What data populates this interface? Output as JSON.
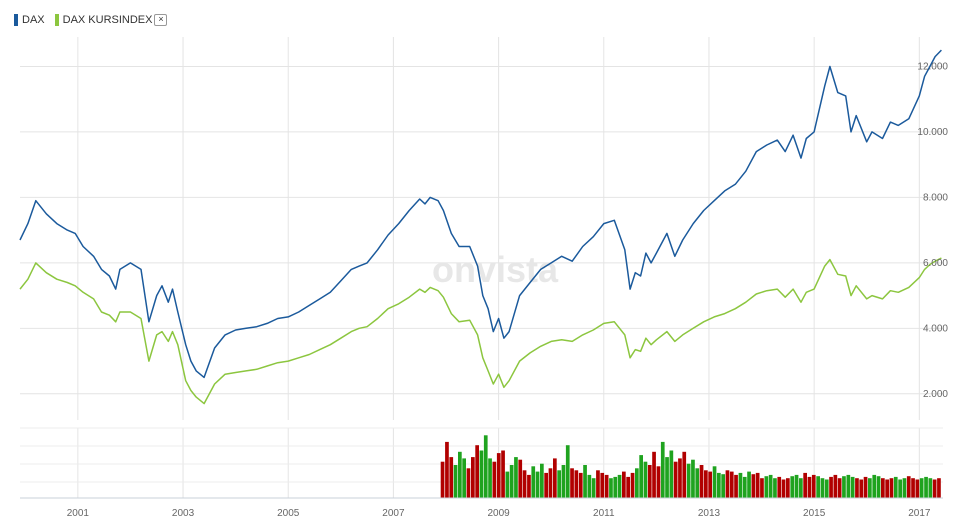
{
  "legend": {
    "items": [
      {
        "label": "DAX",
        "color": "#1b5a9c"
      },
      {
        "label": "DAX KURSINDEX",
        "color": "#8cc63f",
        "close_icon": "close-icon",
        "close_glyph": "×"
      }
    ]
  },
  "watermark": "onvista",
  "chart_data": {
    "type": "line",
    "title": "",
    "xlabel": "",
    "ylabel": "",
    "x_ticks": [
      "2001",
      "2003",
      "2005",
      "2007",
      "2009",
      "2011",
      "2013",
      "2015",
      "2017"
    ],
    "y_ticks": [
      "2.000",
      "4.000",
      "6.000",
      "8.000",
      "10.000",
      "12.000"
    ],
    "xlim": [
      1999.9,
      2017.45
    ],
    "ylim": [
      1200,
      12900
    ],
    "grid": true,
    "series": [
      {
        "name": "DAX",
        "color": "#1b5a9c",
        "x": [
          1999.9,
          2000.05,
          2000.2,
          2000.4,
          2000.6,
          2000.8,
          2000.95,
          2001.1,
          2001.3,
          2001.45,
          2001.6,
          2001.72,
          2001.8,
          2002.0,
          2002.2,
          2002.35,
          2002.5,
          2002.6,
          2002.72,
          2002.8,
          2002.9,
          2003.05,
          2003.15,
          2003.25,
          2003.4,
          2003.6,
          2003.8,
          2004.0,
          2004.2,
          2004.4,
          2004.6,
          2004.8,
          2005.0,
          2005.2,
          2005.4,
          2005.6,
          2005.8,
          2006.0,
          2006.2,
          2006.35,
          2006.5,
          2006.7,
          2006.9,
          2007.1,
          2007.3,
          2007.5,
          2007.6,
          2007.7,
          2007.85,
          2007.95,
          2008.1,
          2008.25,
          2008.45,
          2008.6,
          2008.7,
          2008.8,
          2008.9,
          2009.0,
          2009.1,
          2009.2,
          2009.4,
          2009.6,
          2009.8,
          2010.0,
          2010.2,
          2010.4,
          2010.6,
          2010.8,
          2011.0,
          2011.2,
          2011.4,
          2011.5,
          2011.6,
          2011.7,
          2011.8,
          2011.9,
          2012.0,
          2012.2,
          2012.35,
          2012.5,
          2012.7,
          2012.9,
          2013.1,
          2013.3,
          2013.5,
          2013.7,
          2013.9,
          2014.1,
          2014.3,
          2014.45,
          2014.6,
          2014.75,
          2014.85,
          2015.0,
          2015.2,
          2015.3,
          2015.45,
          2015.6,
          2015.7,
          2015.8,
          2016.0,
          2016.1,
          2016.3,
          2016.45,
          2016.6,
          2016.8,
          2017.0,
          2017.1,
          2017.2,
          2017.3,
          2017.42
        ],
        "values": [
          6700,
          7200,
          7900,
          7500,
          7200,
          7000,
          6900,
          6500,
          6200,
          5800,
          5600,
          5200,
          5800,
          6000,
          5800,
          4200,
          5000,
          5300,
          4800,
          5200,
          4500,
          3500,
          3000,
          2700,
          2500,
          3400,
          3800,
          3950,
          4000,
          4050,
          4150,
          4300,
          4350,
          4500,
          4700,
          4900,
          5100,
          5450,
          5800,
          5900,
          6000,
          6400,
          6850,
          7200,
          7600,
          7950,
          7800,
          8000,
          7900,
          7600,
          6900,
          6500,
          6500,
          5900,
          5000,
          4600,
          3900,
          4300,
          3700,
          3900,
          5000,
          5400,
          5800,
          6000,
          6200,
          6050,
          6500,
          6800,
          7200,
          7300,
          6400,
          5200,
          5700,
          5600,
          6300,
          6000,
          6300,
          6900,
          6200,
          6700,
          7200,
          7600,
          7900,
          8200,
          8400,
          8800,
          9400,
          9600,
          9750,
          9400,
          9900,
          9200,
          9800,
          10000,
          11400,
          12000,
          11200,
          11100,
          10000,
          10500,
          9700,
          10000,
          9800,
          10300,
          10200,
          10400,
          11100,
          11700,
          12000,
          12300,
          12500
        ]
      },
      {
        "name": "DAX KURSINDEX",
        "color": "#8cc63f",
        "x": [
          1999.9,
          2000.05,
          2000.2,
          2000.4,
          2000.6,
          2000.8,
          2000.95,
          2001.1,
          2001.3,
          2001.45,
          2001.6,
          2001.72,
          2001.8,
          2002.0,
          2002.2,
          2002.35,
          2002.5,
          2002.6,
          2002.72,
          2002.8,
          2002.9,
          2003.05,
          2003.15,
          2003.25,
          2003.4,
          2003.6,
          2003.8,
          2004.0,
          2004.2,
          2004.4,
          2004.6,
          2004.8,
          2005.0,
          2005.2,
          2005.4,
          2005.6,
          2005.8,
          2006.0,
          2006.2,
          2006.35,
          2006.5,
          2006.7,
          2006.9,
          2007.1,
          2007.3,
          2007.5,
          2007.6,
          2007.7,
          2007.85,
          2007.95,
          2008.1,
          2008.25,
          2008.45,
          2008.6,
          2008.7,
          2008.8,
          2008.9,
          2009.0,
          2009.1,
          2009.2,
          2009.4,
          2009.6,
          2009.8,
          2010.0,
          2010.2,
          2010.4,
          2010.6,
          2010.8,
          2011.0,
          2011.2,
          2011.4,
          2011.5,
          2011.6,
          2011.7,
          2011.8,
          2011.9,
          2012.0,
          2012.2,
          2012.35,
          2012.5,
          2012.7,
          2012.9,
          2013.1,
          2013.3,
          2013.5,
          2013.7,
          2013.9,
          2014.1,
          2014.3,
          2014.45,
          2014.6,
          2014.75,
          2014.85,
          2015.0,
          2015.2,
          2015.3,
          2015.45,
          2015.6,
          2015.7,
          2015.8,
          2016.0,
          2016.1,
          2016.3,
          2016.45,
          2016.6,
          2016.8,
          2017.0,
          2017.1,
          2017.2,
          2017.3,
          2017.42
        ],
        "values": [
          5200,
          5500,
          6000,
          5700,
          5500,
          5400,
          5300,
          5100,
          4900,
          4500,
          4400,
          4200,
          4500,
          4500,
          4300,
          3000,
          3800,
          3900,
          3600,
          3900,
          3500,
          2400,
          2100,
          1900,
          1700,
          2300,
          2600,
          2650,
          2700,
          2750,
          2850,
          2950,
          3000,
          3100,
          3200,
          3350,
          3500,
          3700,
          3900,
          4000,
          4050,
          4300,
          4600,
          4750,
          4950,
          5200,
          5100,
          5250,
          5150,
          4950,
          4450,
          4200,
          4250,
          3800,
          3100,
          2700,
          2300,
          2600,
          2200,
          2400,
          3000,
          3250,
          3450,
          3600,
          3650,
          3600,
          3800,
          3950,
          4150,
          4200,
          3800,
          3100,
          3350,
          3300,
          3700,
          3500,
          3650,
          3900,
          3600,
          3800,
          4000,
          4200,
          4350,
          4450,
          4600,
          4800,
          5050,
          5150,
          5200,
          4950,
          5200,
          4800,
          5100,
          5200,
          5900,
          6100,
          5650,
          5600,
          5000,
          5300,
          4900,
          5000,
          4900,
          5150,
          5100,
          5250,
          5550,
          5800,
          5950,
          6050,
          6150
        ]
      },
      {
        "name": "",
        "type": "bar",
        "x_start": 2007.9,
        "x_end": 2017.42,
        "values": [
          0.55,
          0.85,
          0.62,
          0.5,
          0.7,
          0.6,
          0.45,
          0.62,
          0.8,
          0.72,
          0.95,
          0.6,
          0.55,
          0.68,
          0.72,
          0.4,
          0.5,
          0.62,
          0.58,
          0.42,
          0.35,
          0.48,
          0.4,
          0.52,
          0.38,
          0.45,
          0.6,
          0.42,
          0.5,
          0.8,
          0.45,
          0.42,
          0.38,
          0.5,
          0.35,
          0.3,
          0.42,
          0.38,
          0.35,
          0.3,
          0.32,
          0.35,
          0.4,
          0.32,
          0.38,
          0.45,
          0.65,
          0.55,
          0.5,
          0.7,
          0.48,
          0.85,
          0.62,
          0.72,
          0.55,
          0.6,
          0.7,
          0.52,
          0.58,
          0.45,
          0.5,
          0.42,
          0.4,
          0.48,
          0.38,
          0.36,
          0.42,
          0.4,
          0.35,
          0.38,
          0.32,
          0.4,
          0.36,
          0.38,
          0.3,
          0.33,
          0.35,
          0.3,
          0.32,
          0.28,
          0.3,
          0.33,
          0.35,
          0.3,
          0.38,
          0.32,
          0.35,
          0.33,
          0.3,
          0.28,
          0.32,
          0.35,
          0.3,
          0.33,
          0.35,
          0.32,
          0.3,
          0.28,
          0.32,
          0.3,
          0.35,
          0.33,
          0.3,
          0.28,
          0.3,
          0.32,
          0.28,
          0.3,
          0.33,
          0.3,
          0.28,
          0.3,
          0.32,
          0.3,
          0.28,
          0.3
        ],
        "colors": [
          "#b10000",
          "#1fa31f"
        ]
      }
    ]
  }
}
